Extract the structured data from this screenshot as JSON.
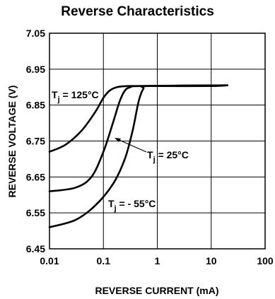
{
  "chart_data": {
    "type": "line",
    "title": "Reverse Characteristics",
    "xlabel": "REVERSE CURRENT (mA)",
    "ylabel": "REVERSE VOLTAGE (V)",
    "x_scale": "log",
    "xlim": [
      0.01,
      100
    ],
    "ylim": [
      6.45,
      7.05
    ],
    "x_ticks": [
      "0.01",
      "0.1",
      "1",
      "10",
      "100"
    ],
    "y_ticks": [
      "7.05",
      "6.95",
      "6.85",
      "6.75",
      "6.65",
      "6.55",
      "6.45"
    ],
    "grid": true,
    "series": [
      {
        "name": "125",
        "points": [
          [
            0.01,
            6.72
          ],
          [
            0.02,
            6.74
          ],
          [
            0.04,
            6.78
          ],
          [
            0.07,
            6.83
          ],
          [
            0.1,
            6.87
          ],
          [
            0.13,
            6.89
          ],
          [
            0.18,
            6.9
          ],
          [
            0.3,
            6.903
          ],
          [
            1,
            6.903
          ],
          [
            10,
            6.903
          ],
          [
            20,
            6.905
          ]
        ]
      },
      {
        "name": "25",
        "points": [
          [
            0.01,
            6.61
          ],
          [
            0.03,
            6.62
          ],
          [
            0.06,
            6.65
          ],
          [
            0.1,
            6.72
          ],
          [
            0.15,
            6.8
          ],
          [
            0.2,
            6.86
          ],
          [
            0.25,
            6.89
          ],
          [
            0.32,
            6.9
          ],
          [
            0.5,
            6.903
          ],
          [
            20,
            6.905
          ]
        ]
      },
      {
        "name": "-55",
        "points": [
          [
            0.01,
            6.51
          ],
          [
            0.03,
            6.53
          ],
          [
            0.07,
            6.57
          ],
          [
            0.15,
            6.63
          ],
          [
            0.25,
            6.7
          ],
          [
            0.35,
            6.78
          ],
          [
            0.45,
            6.86
          ],
          [
            0.55,
            6.895
          ],
          [
            0.7,
            6.903
          ],
          [
            20,
            6.905
          ]
        ]
      }
    ],
    "annotations": [
      {
        "text": "T",
        "sub": "j",
        "value": " = 125°C",
        "target_series": "125"
      },
      {
        "text": "T",
        "sub": "j",
        "value": " = 25°C",
        "target_series": "25"
      },
      {
        "text": "T",
        "sub": "j",
        "value": " = - 55°C",
        "target_series": "-55"
      }
    ],
    "colors": {
      "line": "#000000",
      "grid": "#000000",
      "background": "#ffffff"
    }
  }
}
